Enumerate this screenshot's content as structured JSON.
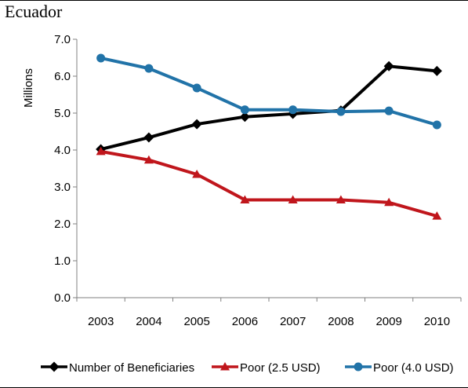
{
  "chart_data": {
    "type": "line",
    "title": "Ecuador",
    "xlabel": "",
    "ylabel": "Millions",
    "ylim": [
      0,
      7
    ],
    "yticks": [
      "0.0",
      "1.0",
      "2.0",
      "3.0",
      "4.0",
      "5.0",
      "6.0",
      "7.0"
    ],
    "categories": [
      "2003",
      "2004",
      "2005",
      "2006",
      "2007",
      "2008",
      "2009",
      "2010"
    ],
    "legend_position": "bottom",
    "grid": false,
    "series": [
      {
        "name": "Number of Beneficiaries",
        "color": "#000000",
        "marker": "diamond",
        "values": [
          4.02,
          4.34,
          4.7,
          4.9,
          4.98,
          5.07,
          6.27,
          6.14
        ]
      },
      {
        "name": "Poor (2.5 USD)",
        "color": "#c0161c",
        "marker": "triangle",
        "values": [
          3.96,
          3.73,
          3.34,
          2.65,
          2.65,
          2.65,
          2.58,
          2.21
        ]
      },
      {
        "name": "Poor (4.0 USD)",
        "color": "#2173a8",
        "marker": "circle",
        "values": [
          6.49,
          6.21,
          5.68,
          5.09,
          5.09,
          5.04,
          5.06,
          4.68
        ]
      }
    ]
  }
}
